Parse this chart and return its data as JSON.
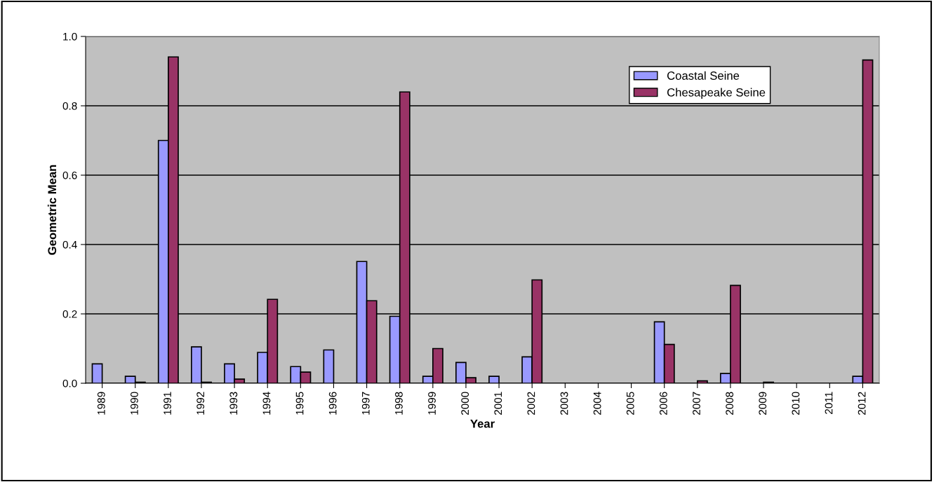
{
  "chart_data": {
    "type": "bar",
    "xlabel": "Year",
    "ylabel": "Geometric Mean",
    "categories": [
      "1989",
      "1990",
      "1991",
      "1992",
      "1993",
      "1994",
      "1995",
      "1996",
      "1997",
      "1998",
      "1999",
      "2000",
      "2001",
      "2002",
      "2003",
      "2004",
      "2005",
      "2006",
      "2007",
      "2008",
      "2009",
      "2010",
      "2011",
      "2012"
    ],
    "series": [
      {
        "name": "Coastal Seine",
        "color": "#9999ff",
        "values": [
          0.056,
          0.02,
          0.7,
          0.105,
          0.056,
          0.089,
          0.048,
          0.096,
          0.351,
          0.193,
          0.02,
          0.06,
          0.02,
          0.076,
          null,
          null,
          null,
          0.177,
          null,
          0.028,
          null,
          null,
          null,
          0.02
        ]
      },
      {
        "name": "Chesapeake Seine",
        "color": "#993366",
        "values": [
          null,
          0.003,
          0.941,
          0.003,
          0.012,
          0.242,
          0.032,
          null,
          0.238,
          0.84,
          0.1,
          0.016,
          null,
          0.298,
          null,
          null,
          null,
          0.112,
          0.007,
          0.282,
          0.003,
          null,
          null,
          0.932
        ]
      }
    ],
    "ylim": [
      0,
      1.0
    ],
    "yticks": [
      {
        "value": 0,
        "label": "0.0"
      },
      {
        "value": 0.2,
        "label": "0.2"
      },
      {
        "value": 0.4,
        "label": "0.4"
      },
      {
        "value": 0.6,
        "label": "0.6"
      },
      {
        "value": 0.8,
        "label": "0.8"
      },
      {
        "value": 1.0,
        "label": "1.0"
      }
    ],
    "grid": "y",
    "legend": "top right"
  }
}
